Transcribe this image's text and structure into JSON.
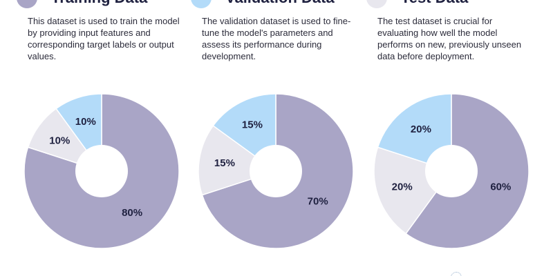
{
  "panels": [
    {
      "title": "Training Data",
      "legend_color": "#a9a5c6",
      "description": "This dataset is used to train the model by providing input features and corresponding target labels or output values."
    },
    {
      "title": "Validation Data",
      "legend_color": "#b3dbf9",
      "description": "The validation dataset is used to fine-tune the model's parameters and assess its performance during development."
    },
    {
      "title": "Test Data",
      "legend_color": "#e8e7ee",
      "description": "The test dataset is crucial for evaluating how well the model performs on new, previously unseen data before deployment."
    }
  ],
  "chart_data": [
    {
      "type": "pie",
      "variant": "donut",
      "labels": [
        "Training Data",
        "Test Data",
        "Validation Data"
      ],
      "values": [
        80,
        10,
        10
      ],
      "display_labels": [
        "80%",
        "10%",
        "10%"
      ],
      "colors": [
        "#a9a5c6",
        "#e8e7ee",
        "#b3dbf9"
      ]
    },
    {
      "type": "pie",
      "variant": "donut",
      "labels": [
        "Training Data",
        "Test Data",
        "Validation Data"
      ],
      "values": [
        70,
        15,
        15
      ],
      "display_labels": [
        "70%",
        "15%",
        "15%"
      ],
      "colors": [
        "#a9a5c6",
        "#e8e7ee",
        "#b3dbf9"
      ]
    },
    {
      "type": "pie",
      "variant": "donut",
      "labels": [
        "Training Data",
        "Test Data",
        "Validation Data"
      ],
      "values": [
        60,
        20,
        20
      ],
      "display_labels": [
        "60%",
        "20%",
        "20%"
      ],
      "colors": [
        "#a9a5c6",
        "#e8e7ee",
        "#b3dbf9"
      ]
    }
  ]
}
